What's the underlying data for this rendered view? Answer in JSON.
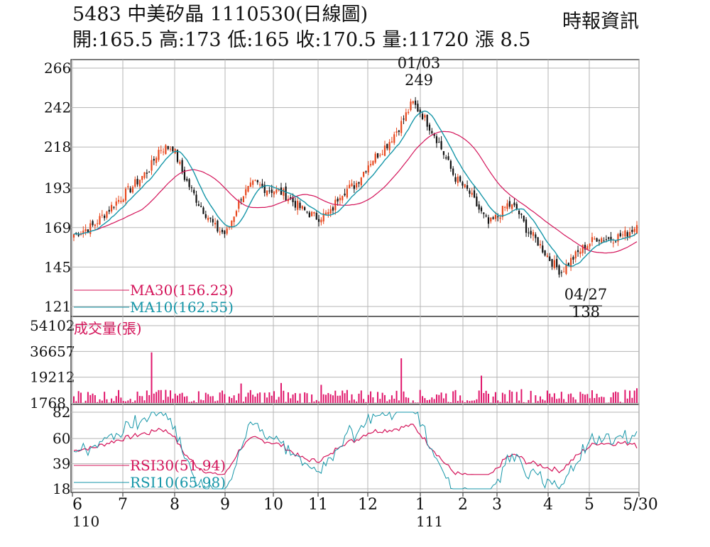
{
  "header": {
    "title": "5483 中美矽晶 1110530(日線圖)",
    "stats": "開:165.5 高:173 低:165 收:170.5 量:11720 漲 8.5",
    "source": "時報資訊"
  },
  "colors": {
    "up": "#e8481e",
    "down": "#111111",
    "ma30": "#d4145a",
    "ma10": "#1596a8",
    "volume": "#e0166b",
    "grid": "#b5b5b5"
  },
  "chart_data": [
    {
      "type": "candlestick",
      "panel": "price",
      "y_ticks": [
        266,
        242,
        218,
        193,
        169,
        145,
        121
      ],
      "ylim": [
        121,
        266
      ],
      "annotations": [
        {
          "date": "01/03",
          "value": "249",
          "label_date": "01/03",
          "label_value": "249"
        },
        {
          "date": "04/27",
          "value": "138",
          "label_date": "04/27",
          "label_value": "138"
        }
      ],
      "legend": [
        {
          "name": "MA30",
          "label": "MA30(156.23)",
          "color": "#d4145a"
        },
        {
          "name": "MA10",
          "label": "MA10(162.55)",
          "color": "#1596a8"
        }
      ],
      "last": {
        "open": 165.5,
        "high": 173,
        "low": 165,
        "close": 170.5
      }
    },
    {
      "type": "bar",
      "panel": "volume",
      "title": "成交量(張)",
      "y_ticks": [
        "54102",
        "36657",
        "19212",
        "1768"
      ],
      "y_tick_values": [
        54102,
        36657,
        19212,
        1768
      ],
      "ylim": [
        1768,
        54102
      ],
      "last_value": 11720
    },
    {
      "type": "line",
      "panel": "rsi",
      "y_ticks": [
        82,
        60,
        39,
        18
      ],
      "ylim": [
        18,
        82
      ],
      "legend": [
        {
          "name": "RSI30",
          "label": "RSI30(51.94)",
          "color": "#d4145a"
        },
        {
          "name": "RSI10",
          "label": "RSI10(65.98)",
          "color": "#1596a8"
        }
      ]
    }
  ],
  "x_axis": {
    "ticks": [
      "6",
      "7",
      "8",
      "9",
      "10",
      "11",
      "12",
      "1",
      "2",
      "3",
      "4",
      "5",
      "5/30"
    ],
    "year_labels": [
      {
        "label": "110",
        "under": "6"
      },
      {
        "label": "111",
        "under": "1"
      }
    ]
  }
}
